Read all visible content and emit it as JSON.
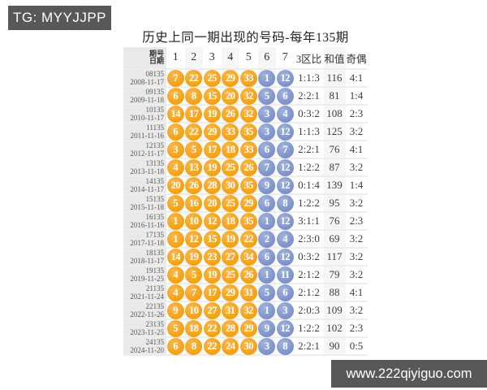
{
  "overlay": {
    "tg_label": "TG: MYYJJPP",
    "website": "www.222qiyiguo.com"
  },
  "colors": {
    "front_ball": "#f6a41d",
    "back_ball": "#8397cd",
    "badge_bg": "#58585b",
    "date_col_bg": "#e9e9e9"
  },
  "table": {
    "title": "历史上同一期出现的号码-每年135期",
    "header": {
      "period_label": "期号",
      "date_label": "日期",
      "ball_columns": [
        "1",
        "2",
        "3",
        "4",
        "5",
        "6",
        "7"
      ],
      "zone_label": "3区比",
      "sum_label": "和值",
      "odd_even_label": "奇偶"
    },
    "rows": [
      {
        "period": "08135",
        "date": "2008-11-17",
        "front": [
          "7",
          "22",
          "25",
          "29",
          "33"
        ],
        "back": [
          "1",
          "12"
        ],
        "zone": "1:1:3",
        "sum": "116",
        "odd_even": "4:1"
      },
      {
        "period": "09135",
        "date": "2009-11-18",
        "front": [
          "6",
          "8",
          "15",
          "20",
          "32"
        ],
        "back": [
          "5",
          "6"
        ],
        "zone": "2:2:1",
        "sum": "81",
        "odd_even": "1:4"
      },
      {
        "period": "10135",
        "date": "2010-11-17",
        "front": [
          "14",
          "17",
          "19",
          "26",
          "32"
        ],
        "back": [
          "3",
          "4"
        ],
        "zone": "0:3:2",
        "sum": "108",
        "odd_even": "2:3"
      },
      {
        "period": "11135",
        "date": "2011-11-16",
        "front": [
          "6",
          "22",
          "29",
          "33",
          "35"
        ],
        "back": [
          "3",
          "12"
        ],
        "zone": "1:1:3",
        "sum": "125",
        "odd_even": "3:2"
      },
      {
        "period": "12135",
        "date": "2012-11-17",
        "front": [
          "3",
          "5",
          "17",
          "18",
          "33"
        ],
        "back": [
          "6",
          "7"
        ],
        "zone": "2:2:1",
        "sum": "76",
        "odd_even": "4:1"
      },
      {
        "period": "13135",
        "date": "2013-11-18",
        "front": [
          "4",
          "13",
          "19",
          "25",
          "26"
        ],
        "back": [
          "7",
          "12"
        ],
        "zone": "1:2:2",
        "sum": "87",
        "odd_even": "3:2"
      },
      {
        "period": "14135",
        "date": "2014-11-17",
        "front": [
          "20",
          "26",
          "28",
          "30",
          "35"
        ],
        "back": [
          "9",
          "12"
        ],
        "zone": "0:1:4",
        "sum": "139",
        "odd_even": "1:4"
      },
      {
        "period": "15135",
        "date": "2015-11-18",
        "front": [
          "5",
          "16",
          "20",
          "25",
          "29"
        ],
        "back": [
          "6",
          "8"
        ],
        "zone": "1:2:2",
        "sum": "95",
        "odd_even": "3:2"
      },
      {
        "period": "16135",
        "date": "2016-11-16",
        "front": [
          "1",
          "10",
          "12",
          "18",
          "35"
        ],
        "back": [
          "1",
          "12"
        ],
        "zone": "3:1:1",
        "sum": "76",
        "odd_even": "2:3"
      },
      {
        "period": "17135",
        "date": "2017-11-18",
        "front": [
          "1",
          "12",
          "15",
          "19",
          "22"
        ],
        "back": [
          "2",
          "4"
        ],
        "zone": "2:3:0",
        "sum": "69",
        "odd_even": "3:2"
      },
      {
        "period": "18135",
        "date": "2018-11-17",
        "front": [
          "14",
          "19",
          "23",
          "27",
          "34"
        ],
        "back": [
          "6",
          "12"
        ],
        "zone": "0:3:2",
        "sum": "117",
        "odd_even": "3:2"
      },
      {
        "period": "19135",
        "date": "2019-11-25",
        "front": [
          "4",
          "5",
          "19",
          "25",
          "26"
        ],
        "back": [
          "1",
          "11"
        ],
        "zone": "2:1:2",
        "sum": "79",
        "odd_even": "3:2"
      },
      {
        "period": "21135",
        "date": "2021-11-24",
        "front": [
          "4",
          "7",
          "17",
          "29",
          "31"
        ],
        "back": [
          "5",
          "6"
        ],
        "zone": "2:1:2",
        "sum": "88",
        "odd_even": "4:1"
      },
      {
        "period": "22135",
        "date": "2022-11-26",
        "front": [
          "9",
          "10",
          "27",
          "31",
          "32"
        ],
        "back": [
          "1",
          "3"
        ],
        "zone": "2:0:3",
        "sum": "109",
        "odd_even": "3:2"
      },
      {
        "period": "23135",
        "date": "2023-11-25",
        "front": [
          "5",
          "18",
          "22",
          "28",
          "29"
        ],
        "back": [
          "9",
          "12"
        ],
        "zone": "1:2:2",
        "sum": "102",
        "odd_even": "2:3"
      },
      {
        "period": "24135",
        "date": "2024-11-20",
        "front": [
          "6",
          "8",
          "22",
          "24",
          "30"
        ],
        "back": [
          "3",
          "8"
        ],
        "zone": "2:2:1",
        "sum": "90",
        "odd_even": "0:5"
      }
    ]
  }
}
